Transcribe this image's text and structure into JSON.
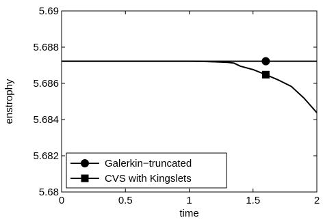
{
  "chart_data": {
    "type": "line",
    "xlabel": "time",
    "ylabel": "enstrophy",
    "xlim": [
      0,
      2
    ],
    "ylim": [
      5.68,
      5.69
    ],
    "x_ticks": [
      0,
      0.5,
      1,
      1.5,
      2
    ],
    "x_tick_labels": [
      "0",
      "0.5",
      "1",
      "1.5",
      "2"
    ],
    "y_ticks": [
      5.68,
      5.682,
      5.684,
      5.686,
      5.688,
      5.69
    ],
    "y_tick_labels": [
      "5.68",
      "5.682",
      "5.684",
      "5.686",
      "5.688",
      "5.69"
    ],
    "grid": false,
    "legend_placement": "bottom-left",
    "series": [
      {
        "name": "Galerkin−truncated",
        "marker": "circle",
        "color": "#000000",
        "x": [
          0,
          0.5,
          1,
          1.5,
          1.6,
          2
        ],
        "y": [
          5.68722,
          5.68722,
          5.68722,
          5.68722,
          5.68722,
          5.68722
        ],
        "marker_x": [
          1.6
        ],
        "marker_y": [
          5.68722
        ]
      },
      {
        "name": "CVS with Kingslets",
        "marker": "square",
        "color": "#000000",
        "x": [
          0,
          0.5,
          1,
          1.1,
          1.2,
          1.3,
          1.35,
          1.4,
          1.5,
          1.6,
          1.7,
          1.8,
          1.9,
          2
        ],
        "y": [
          5.68722,
          5.68722,
          5.68722,
          5.68721,
          5.68719,
          5.68716,
          5.68712,
          5.68695,
          5.68676,
          5.68648,
          5.68618,
          5.68583,
          5.68518,
          5.68438
        ],
        "marker_x": [
          1.6
        ],
        "marker_y": [
          5.68648
        ]
      }
    ]
  }
}
